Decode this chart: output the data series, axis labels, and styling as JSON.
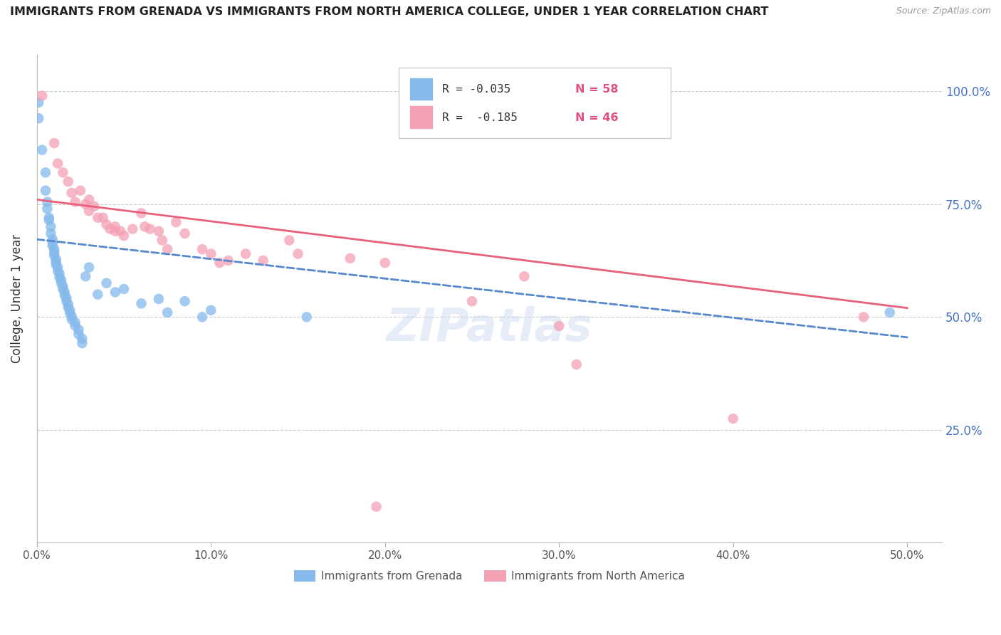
{
  "title": "IMMIGRANTS FROM GRENADA VS IMMIGRANTS FROM NORTH AMERICA COLLEGE, UNDER 1 YEAR CORRELATION CHART",
  "source": "Source: ZipAtlas.com",
  "ylabel": "College, Under 1 year",
  "x_tick_labels": [
    "0.0%",
    "10.0%",
    "20.0%",
    "30.0%",
    "40.0%",
    "50.0%"
  ],
  "x_tick_values": [
    0.0,
    0.1,
    0.2,
    0.3,
    0.4,
    0.5
  ],
  "y_tick_labels": [
    "100.0%",
    "75.0%",
    "50.0%",
    "25.0%"
  ],
  "y_tick_values": [
    1.0,
    0.75,
    0.5,
    0.25
  ],
  "xlim": [
    0.0,
    0.52
  ],
  "ylim": [
    0.0,
    1.08
  ],
  "legend1_r": "R = -0.035",
  "legend1_n": "N = 58",
  "legend2_r": "R =  -0.185",
  "legend2_n": "N = 46",
  "legend_label1": "Immigrants from Grenada",
  "legend_label2": "Immigrants from North America",
  "blue_color": "#85B9EC",
  "pink_color": "#F4A0B5",
  "blue_line_color": "#5588CC",
  "pink_line_color": "#E8607A",
  "watermark": "ZIPatlas",
  "blue_line_x0": 0.0,
  "blue_line_y0": 0.672,
  "blue_line_x1": 0.5,
  "blue_line_y1": 0.455,
  "pink_line_x0": 0.0,
  "pink_line_y0": 0.76,
  "pink_line_x1": 0.5,
  "pink_line_y1": 0.52,
  "blue_points": [
    [
      0.001,
      0.975
    ],
    [
      0.001,
      0.94
    ],
    [
      0.003,
      0.87
    ],
    [
      0.005,
      0.82
    ],
    [
      0.005,
      0.78
    ],
    [
      0.006,
      0.755
    ],
    [
      0.006,
      0.74
    ],
    [
      0.007,
      0.72
    ],
    [
      0.007,
      0.715
    ],
    [
      0.008,
      0.7
    ],
    [
      0.008,
      0.685
    ],
    [
      0.009,
      0.672
    ],
    [
      0.009,
      0.665
    ],
    [
      0.009,
      0.658
    ],
    [
      0.01,
      0.65
    ],
    [
      0.01,
      0.643
    ],
    [
      0.01,
      0.636
    ],
    [
      0.011,
      0.628
    ],
    [
      0.011,
      0.622
    ],
    [
      0.011,
      0.616
    ],
    [
      0.012,
      0.61
    ],
    [
      0.012,
      0.602
    ],
    [
      0.013,
      0.596
    ],
    [
      0.013,
      0.588
    ],
    [
      0.014,
      0.582
    ],
    [
      0.014,
      0.575
    ],
    [
      0.015,
      0.568
    ],
    [
      0.015,
      0.562
    ],
    [
      0.016,
      0.555
    ],
    [
      0.016,
      0.548
    ],
    [
      0.017,
      0.542
    ],
    [
      0.017,
      0.535
    ],
    [
      0.018,
      0.528
    ],
    [
      0.018,
      0.521
    ],
    [
      0.019,
      0.515
    ],
    [
      0.019,
      0.508
    ],
    [
      0.02,
      0.502
    ],
    [
      0.02,
      0.495
    ],
    [
      0.022,
      0.488
    ],
    [
      0.022,
      0.481
    ],
    [
      0.024,
      0.472
    ],
    [
      0.024,
      0.462
    ],
    [
      0.026,
      0.452
    ],
    [
      0.026,
      0.442
    ],
    [
      0.028,
      0.59
    ],
    [
      0.03,
      0.61
    ],
    [
      0.035,
      0.55
    ],
    [
      0.04,
      0.575
    ],
    [
      0.045,
      0.555
    ],
    [
      0.05,
      0.562
    ],
    [
      0.06,
      0.53
    ],
    [
      0.07,
      0.54
    ],
    [
      0.075,
      0.51
    ],
    [
      0.085,
      0.535
    ],
    [
      0.095,
      0.5
    ],
    [
      0.1,
      0.515
    ],
    [
      0.155,
      0.5
    ],
    [
      0.49,
      0.51
    ]
  ],
  "pink_points": [
    [
      0.003,
      0.99
    ],
    [
      0.01,
      0.885
    ],
    [
      0.012,
      0.84
    ],
    [
      0.015,
      0.82
    ],
    [
      0.018,
      0.8
    ],
    [
      0.02,
      0.775
    ],
    [
      0.022,
      0.755
    ],
    [
      0.025,
      0.78
    ],
    [
      0.028,
      0.75
    ],
    [
      0.03,
      0.76
    ],
    [
      0.03,
      0.735
    ],
    [
      0.033,
      0.745
    ],
    [
      0.035,
      0.72
    ],
    [
      0.038,
      0.72
    ],
    [
      0.04,
      0.705
    ],
    [
      0.042,
      0.695
    ],
    [
      0.045,
      0.7
    ],
    [
      0.045,
      0.69
    ],
    [
      0.048,
      0.69
    ],
    [
      0.05,
      0.68
    ],
    [
      0.055,
      0.695
    ],
    [
      0.06,
      0.73
    ],
    [
      0.062,
      0.7
    ],
    [
      0.065,
      0.695
    ],
    [
      0.07,
      0.69
    ],
    [
      0.072,
      0.67
    ],
    [
      0.075,
      0.65
    ],
    [
      0.08,
      0.71
    ],
    [
      0.085,
      0.685
    ],
    [
      0.095,
      0.65
    ],
    [
      0.1,
      0.64
    ],
    [
      0.105,
      0.62
    ],
    [
      0.11,
      0.625
    ],
    [
      0.12,
      0.64
    ],
    [
      0.13,
      0.625
    ],
    [
      0.145,
      0.67
    ],
    [
      0.15,
      0.64
    ],
    [
      0.18,
      0.63
    ],
    [
      0.2,
      0.62
    ],
    [
      0.25,
      0.535
    ],
    [
      0.28,
      0.59
    ],
    [
      0.3,
      0.48
    ],
    [
      0.31,
      0.395
    ],
    [
      0.4,
      0.275
    ],
    [
      0.475,
      0.5
    ],
    [
      0.195,
      0.08
    ]
  ]
}
